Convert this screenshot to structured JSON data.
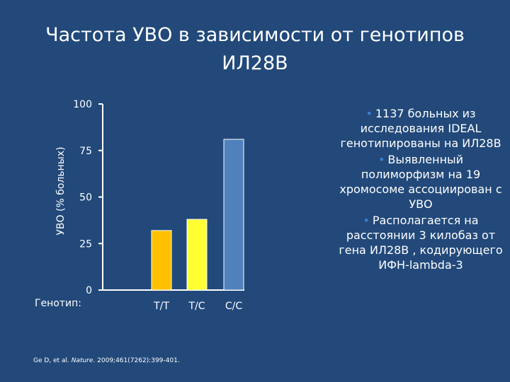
{
  "title": "Частота УВО в зависимости от генотипов ИЛ28В",
  "chart_data": {
    "type": "bar",
    "categories": [
      "Т/Т",
      "Т/С",
      "С/С"
    ],
    "values": [
      32,
      38,
      81
    ],
    "colors": [
      "#ffc000",
      "#ffff33",
      "#4f81bd"
    ],
    "ylabel": "УВО  (% больных)",
    "xlabel": "Генотип:",
    "ylim": [
      0,
      100
    ],
    "yticks": [
      "0",
      "25",
      "50",
      "75",
      "100"
    ],
    "grid": false,
    "legend": "none"
  },
  "bullets": [
    "1137 больных из исследования IDEAL генотипированы на ИЛ28В",
    "Выявленный полиморфизм на  19 хромосоме ассоциирован с  УВО",
    "Располагается на расстоянии 3 килобаз  от гена ИЛ28В , кодирующего ИФН-lambda-3"
  ],
  "bullet_marker": "•",
  "citation": {
    "authors": "Ge D, et al. ",
    "journal": "Nature",
    "rest": ". 2009;461(7262):399-401."
  }
}
